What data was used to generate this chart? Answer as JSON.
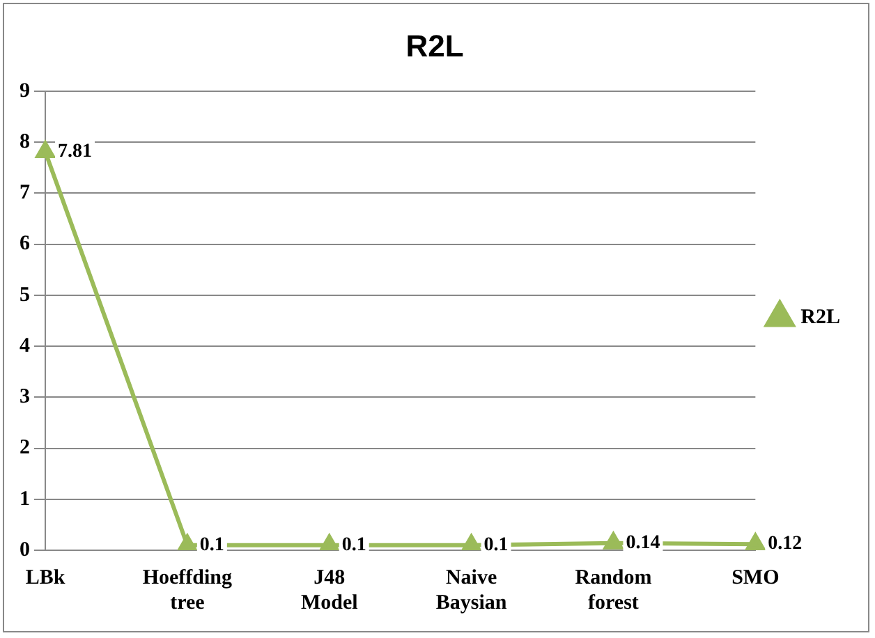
{
  "chart_data": {
    "type": "line",
    "title": "R2L",
    "categories": [
      "LBk",
      "Hoeffding tree",
      "J48 Model",
      "Naive Baysian",
      "Random forest",
      "SMO"
    ],
    "series": [
      {
        "name": "R2L",
        "color": "#9bbb59",
        "values": [
          7.81,
          0.1,
          0.1,
          0.1,
          0.14,
          0.12
        ]
      }
    ],
    "ylim": [
      0,
      9
    ],
    "yticks": [
      0,
      1,
      2,
      3,
      4,
      5,
      6,
      7,
      8,
      9
    ],
    "grid": "y",
    "legend": "right",
    "marker": "triangle",
    "line_style": "solid",
    "data_labels": true
  }
}
